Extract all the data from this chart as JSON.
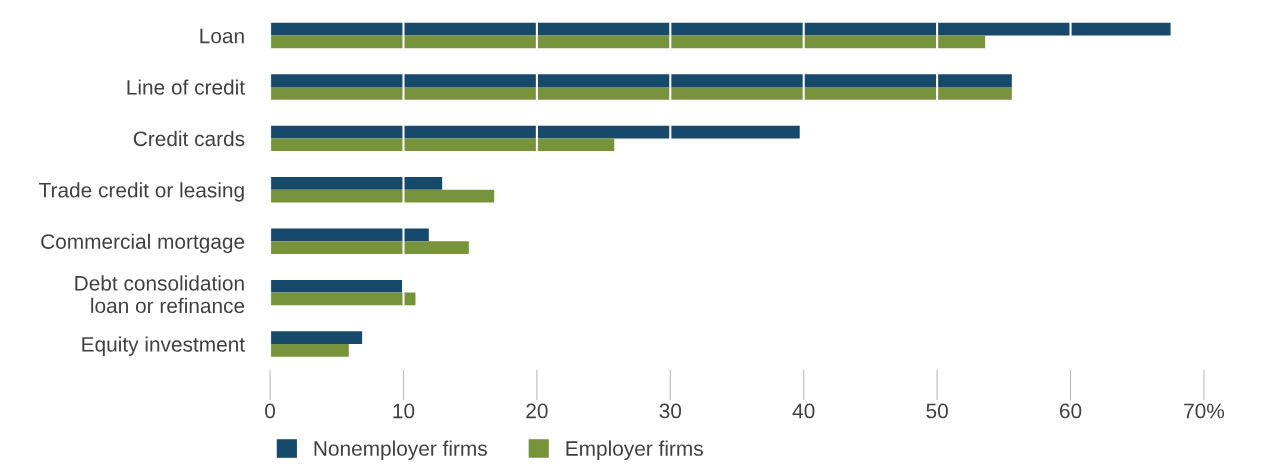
{
  "chart_data": {
    "type": "bar",
    "orientation": "horizontal",
    "categories": [
      "Loan",
      "Line of credit",
      "Credit cards",
      "Trade credit or leasing",
      "Commercial mortgage",
      "Debt consolidation\nloan or refinance",
      "Equity investment"
    ],
    "series": [
      {
        "name": "Nonemployer firms",
        "color": "#17496b",
        "values": [
          67.5,
          55.6,
          39.7,
          12.9,
          11.9,
          9.9,
          6.9
        ]
      },
      {
        "name": "Employer firms",
        "color": "#77933c",
        "values": [
          53.6,
          55.6,
          25.8,
          16.8,
          14.9,
          10.9,
          5.9
        ]
      }
    ],
    "xlim": [
      0,
      70
    ],
    "xticks": [
      0,
      10,
      20,
      30,
      40,
      50,
      60,
      {
        "value": 70,
        "label": "70%"
      }
    ],
    "grid": "x",
    "legend": "bottom"
  }
}
